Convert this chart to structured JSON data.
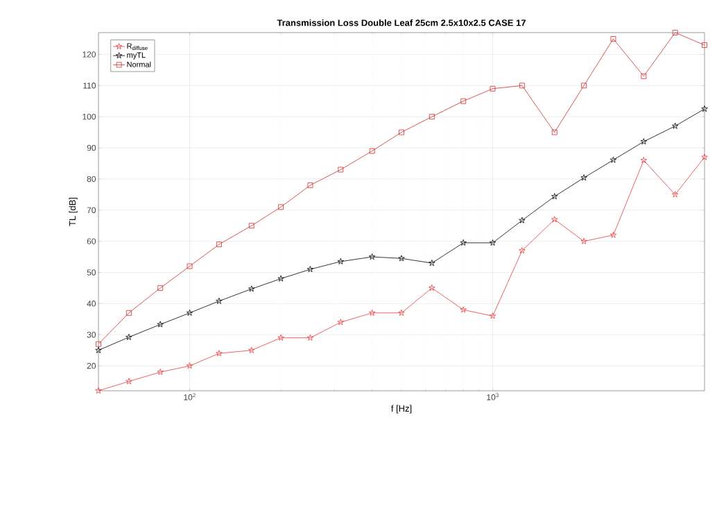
{
  "chart_data": {
    "type": "line",
    "title": "Transmission Loss Double Leaf 25cm 2.5x10x2.5 CASE 17",
    "xlabel": "f [Hz]",
    "ylabel": "TL [dB]",
    "log": "x",
    "grid": true,
    "legend": "top left",
    "x": [
      50,
      63,
      80,
      100,
      125,
      160,
      200,
      250,
      315,
      400,
      500,
      630,
      800,
      1000,
      1250,
      1600,
      2000,
      2500,
      3150,
      4000,
      5000
    ],
    "xlim": [
      50,
      5000
    ],
    "xticks": [
      {
        "value": 100,
        "label": "10$^{2}$"
      },
      {
        "value": 1000,
        "label": "10$^{3}$"
      }
    ],
    "ylim": [
      12,
      127
    ],
    "yticks": [
      20,
      30,
      40,
      50,
      60,
      70,
      80,
      90,
      100,
      110,
      120
    ],
    "series": [
      {
        "name": "R$_{diffuse}$",
        "color": "#e83a3a",
        "marker": "star",
        "values": [
          12,
          15,
          18,
          20,
          24,
          25,
          29,
          29,
          34,
          37,
          37,
          45,
          38,
          36,
          57,
          67,
          60,
          62,
          86,
          75,
          87
        ]
      },
      {
        "name": "myTL",
        "color": "#000000",
        "marker": "star",
        "values": [
          25,
          29.2,
          33.3,
          37,
          40.8,
          44.7,
          48,
          51,
          53.5,
          55,
          54.5,
          53,
          59.5,
          59.5,
          66.7,
          74.4,
          80.4,
          86.1,
          92,
          97,
          102.5
        ]
      },
      {
        "name": "Normal",
        "color": "#d42a2a",
        "marker": "square",
        "values": [
          27,
          37,
          45,
          52,
          59,
          65,
          71,
          78,
          83,
          89,
          95,
          100,
          105,
          109,
          110,
          95,
          110,
          125,
          113,
          127,
          123
        ]
      }
    ]
  }
}
